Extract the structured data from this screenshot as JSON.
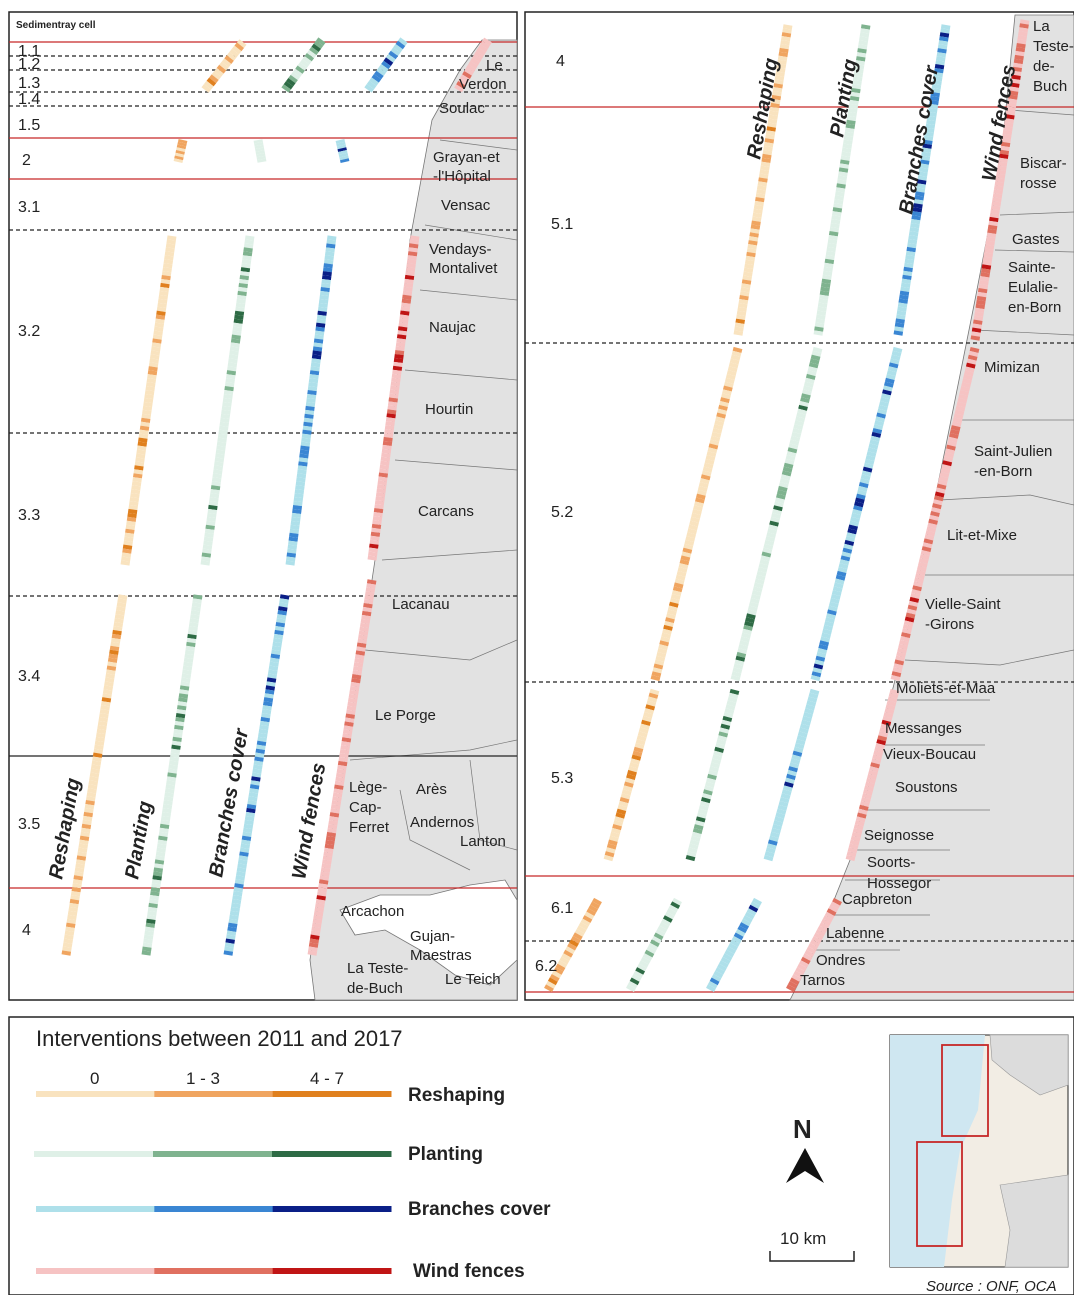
{
  "header_label": "Sedimentray cell",
  "legend": {
    "title": "Interventions between 2011 and 2017",
    "classes": [
      "0",
      "1 - 3",
      "4 - 7"
    ],
    "series": [
      {
        "name": "Reshaping",
        "colors": [
          "#f9e3bf",
          "#f0a560",
          "#e0801e"
        ]
      },
      {
        "name": "Planting",
        "colors": [
          "#dff0e7",
          "#7fb38f",
          "#2e6b45"
        ]
      },
      {
        "name": "Branches cover",
        "colors": [
          "#aee0ea",
          "#3a86d3",
          "#0a1f87"
        ]
      },
      {
        "name": "Wind fences",
        "colors": [
          "#f6c3c3",
          "#e07060",
          "#c01515"
        ]
      }
    ]
  },
  "north_label": "N",
  "scale_label": "10 km",
  "source_label": "Source : ONF, OCA",
  "left_panel": {
    "cells": [
      "1.1",
      "1.2",
      "1.3",
      "1.4",
      "1.5",
      "2",
      "3.1",
      "3.2",
      "3.3",
      "3.4",
      "3.5",
      "4"
    ],
    "towns": [
      "Le",
      "Verdon",
      "Soulac",
      "Grayan-et",
      "-l'Hôpital",
      "Vensac",
      "Vendays-",
      "Montalivet",
      "Naujac",
      "Hourtin",
      "Carcans",
      "Lacanau",
      "Le Porge",
      "Lège-",
      "Cap-",
      "Ferret",
      "Arès",
      "Andernos",
      "Lanton",
      "Arcachon",
      "Gujan-",
      "Maestras",
      "La Teste-",
      "de-Buch",
      "Le Teich"
    ],
    "columns": [
      "Reshaping",
      "Planting",
      "Branches cover",
      "Wind fences"
    ]
  },
  "right_panel": {
    "cells": [
      "4",
      "5.1",
      "5.2",
      "5.3",
      "6.1",
      "6.2"
    ],
    "towns": [
      "La",
      "Teste-",
      "de-",
      "Buch",
      "Biscar-",
      "rosse",
      "Gastes",
      "Sainte-",
      "Eulalie-",
      "en-Born",
      "Mimizan",
      "Saint-Julien",
      "-en-Born",
      "Lit-et-Mixe",
      "Vielle-Saint",
      "-Girons",
      "Moliets-et-Maa",
      "Messanges",
      "Vieux-Boucau",
      "Soustons",
      "Seignosse",
      "Soorts-",
      "Hossegor",
      "Capbreton",
      "Labenne",
      "Ondres",
      "Tarnos"
    ],
    "columns": [
      "Reshaping",
      "Planting",
      "Branches cover",
      "Wind fences"
    ]
  }
}
